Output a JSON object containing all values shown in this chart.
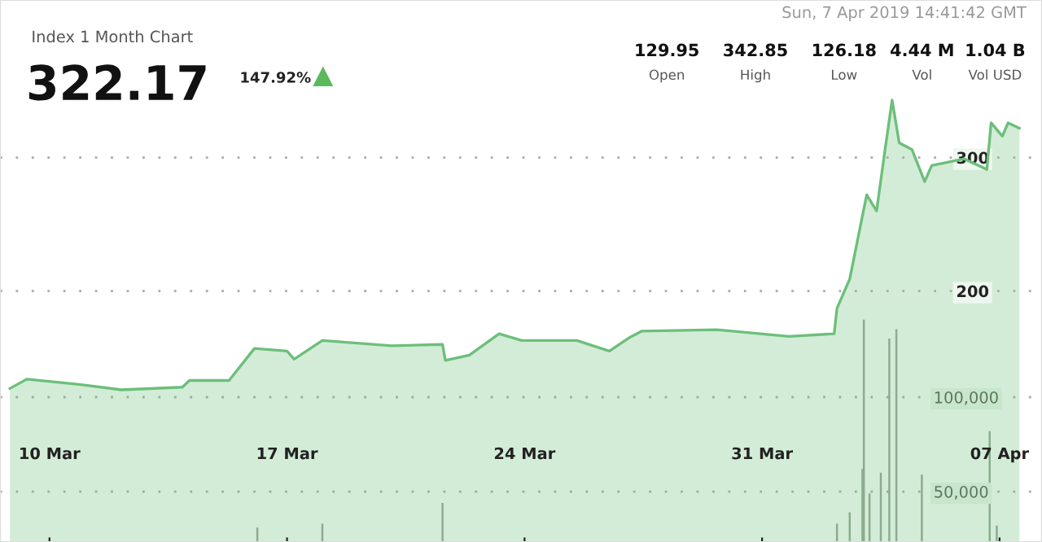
{
  "chart_data": {
    "type": "area",
    "annotations": [
      "Index 1 Month Chart",
      "322.17",
      "147.92%",
      "Sun, 7 Apr 2019 14:41:42 GMT",
      "129.95",
      "Open",
      "342.85",
      "High",
      "126.18",
      "Low",
      "4.44 M",
      "Vol",
      "1.04 B",
      "Vol USD"
    ],
    "series": [
      {
        "color": "#6cbf7a",
        "x": [
          "2019-03-08T20:00",
          "2019-03-09T08:00",
          "2019-03-10T21:00",
          "2019-03-12T03:00",
          "2019-03-13T22:00",
          "2019-03-14T03:00",
          "2019-03-15T07:00",
          "2019-03-16T01:00",
          "2019-03-17T00:00",
          "2019-03-17T05:00",
          "2019-03-18T01:00",
          "2019-03-20T02:00",
          "2019-03-21T14:00",
          "2019-03-21T16:00",
          "2019-03-22T09:00",
          "2019-03-23T06:00",
          "2019-03-23T22:00",
          "2019-03-25T13:00",
          "2019-03-26T12:00",
          "2019-03-27T02:00",
          "2019-03-27T11:00",
          "2019-03-29T16:00",
          "2019-03-31T19:00",
          "2019-04-02T03:00",
          "2019-04-02T05:00",
          "2019-04-02T14:00",
          "2019-04-03T02:00",
          "2019-04-03T09:00",
          "2019-04-03T15:00",
          "2019-04-03T20:00",
          "2019-04-04T01:00",
          "2019-04-04T10:00",
          "2019-04-04T19:00",
          "2019-04-05T00:00",
          "2019-04-05T23:00",
          "2019-04-06T15:00",
          "2019-04-06T18:00",
          "2019-04-07T02:00",
          "2019-04-07T06:00",
          "2019-04-07T14:00"
        ],
        "values": [
          127,
          134,
          130,
          126,
          128,
          133,
          133,
          157,
          155,
          149,
          163,
          159,
          160,
          148,
          152,
          168,
          163,
          163,
          155,
          165,
          170,
          171,
          166,
          168,
          187,
          209,
          272,
          260,
          306,
          343,
          311,
          306,
          282,
          294,
          299,
          291,
          326,
          316,
          326,
          322
        ]
      },
      {
        "type": "bar",
        "axis": "y2",
        "color": "#9aa39a",
        "x": [
          "2019-03-16T03:00",
          "2019-03-18T01:00",
          "2019-03-21T14:00",
          "2019-04-02T05:00",
          "2019-04-02T14:00",
          "2019-04-02T23:00",
          "2019-04-03T00:00",
          "2019-04-03T04:00",
          "2019-04-03T12:00",
          "2019-04-03T18:00",
          "2019-04-03T23:00",
          "2019-04-04T17:00",
          "2019-04-06T17:00",
          "2019-04-06T22:00"
        ],
        "values": [
          31000,
          33000,
          44000,
          33000,
          39000,
          62000,
          141000,
          49000,
          60000,
          131000,
          136000,
          59000,
          82000,
          32000
        ]
      }
    ],
    "xlim": [
      "2019-03-08T13:00",
      "2019-04-08T06:00"
    ],
    "xticks": [
      {
        "value": "2019-03-10",
        "label": "10 Mar"
      },
      {
        "value": "2019-03-17",
        "label": "17 Mar"
      },
      {
        "value": "2019-03-24",
        "label": "24 Mar"
      },
      {
        "value": "2019-03-31",
        "label": "31 Mar"
      },
      {
        "value": "2019-04-07",
        "label": "07 Apr"
      }
    ],
    "ylim": [
      12,
      418
    ],
    "yticks": [
      200,
      300
    ],
    "y2lim": [
      23300,
      310300
    ],
    "y2ticks": [
      {
        "value": 50000,
        "label": "50,000"
      },
      {
        "value": 100000,
        "label": "100,000"
      }
    ],
    "grid": "y"
  }
}
